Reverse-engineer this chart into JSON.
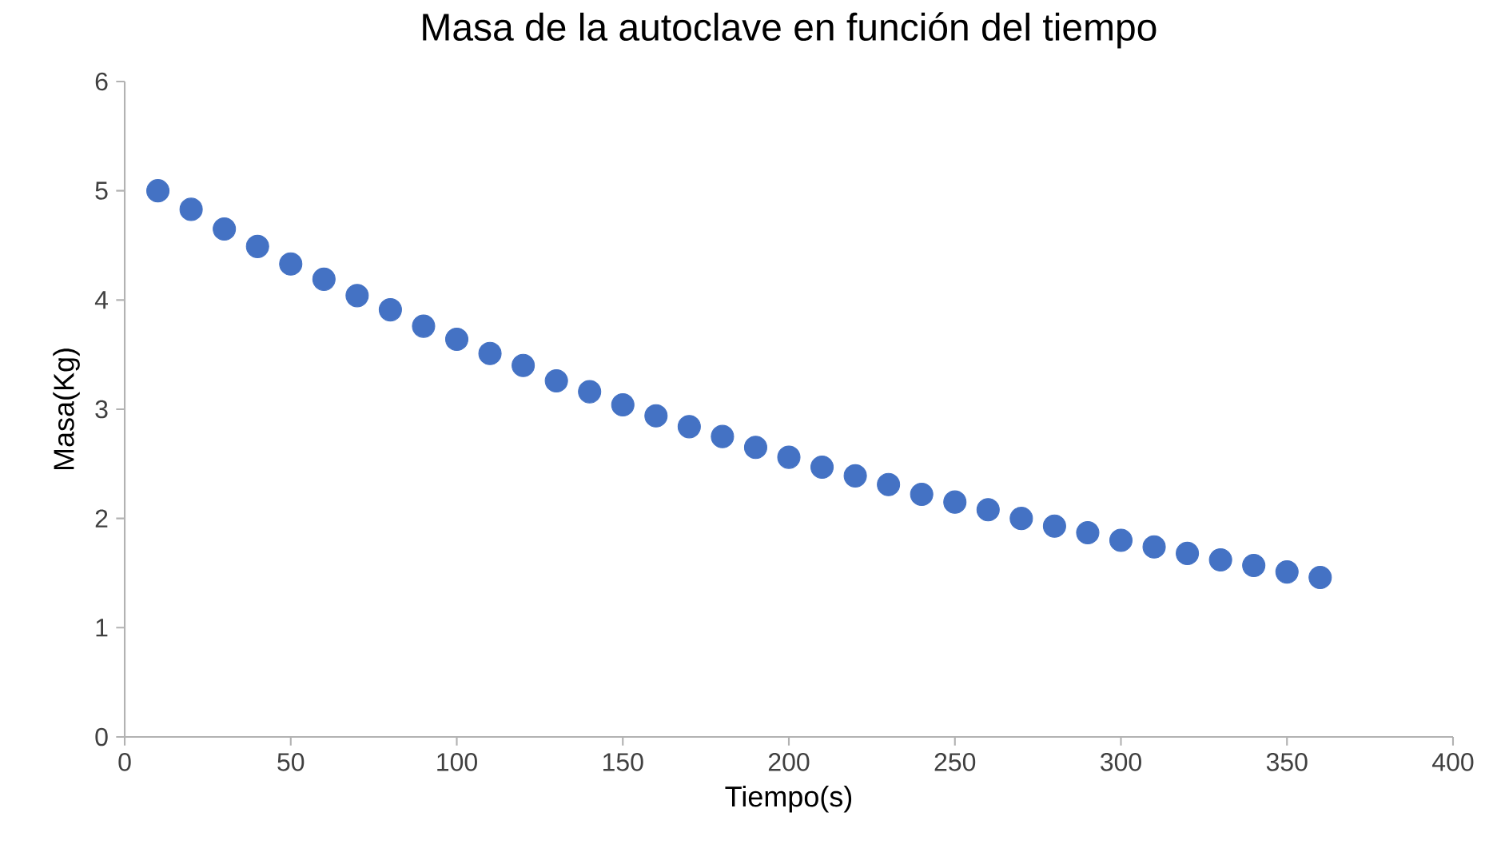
{
  "chart_data": {
    "type": "scatter",
    "title": "Masa de la autoclave en función del tiempo",
    "xlabel": "Tiempo(s)",
    "ylabel": "Masa(Kg)",
    "x": [
      10,
      20,
      30,
      40,
      50,
      60,
      70,
      80,
      90,
      100,
      110,
      120,
      130,
      140,
      150,
      160,
      170,
      180,
      190,
      200,
      210,
      220,
      230,
      240,
      250,
      260,
      270,
      280,
      290,
      300,
      310,
      320,
      330,
      340,
      350,
      360
    ],
    "values": [
      5.0,
      4.83,
      4.65,
      4.49,
      4.33,
      4.19,
      4.04,
      3.91,
      3.76,
      3.64,
      3.51,
      3.4,
      3.26,
      3.16,
      3.04,
      2.94,
      2.84,
      2.75,
      2.65,
      2.56,
      2.47,
      2.39,
      2.31,
      2.22,
      2.15,
      2.08,
      2.0,
      1.93,
      1.87,
      1.8,
      1.74,
      1.68,
      1.62,
      1.57,
      1.51,
      1.46
    ],
    "color": "#4472c4",
    "marker": "circle",
    "xlim": [
      0,
      400
    ],
    "xticks": [
      0,
      50,
      100,
      150,
      200,
      250,
      300,
      350,
      400
    ],
    "ylim": [
      0,
      6
    ],
    "yticks": [
      0,
      1,
      2,
      3,
      4,
      5,
      6
    ],
    "grid": false
  }
}
